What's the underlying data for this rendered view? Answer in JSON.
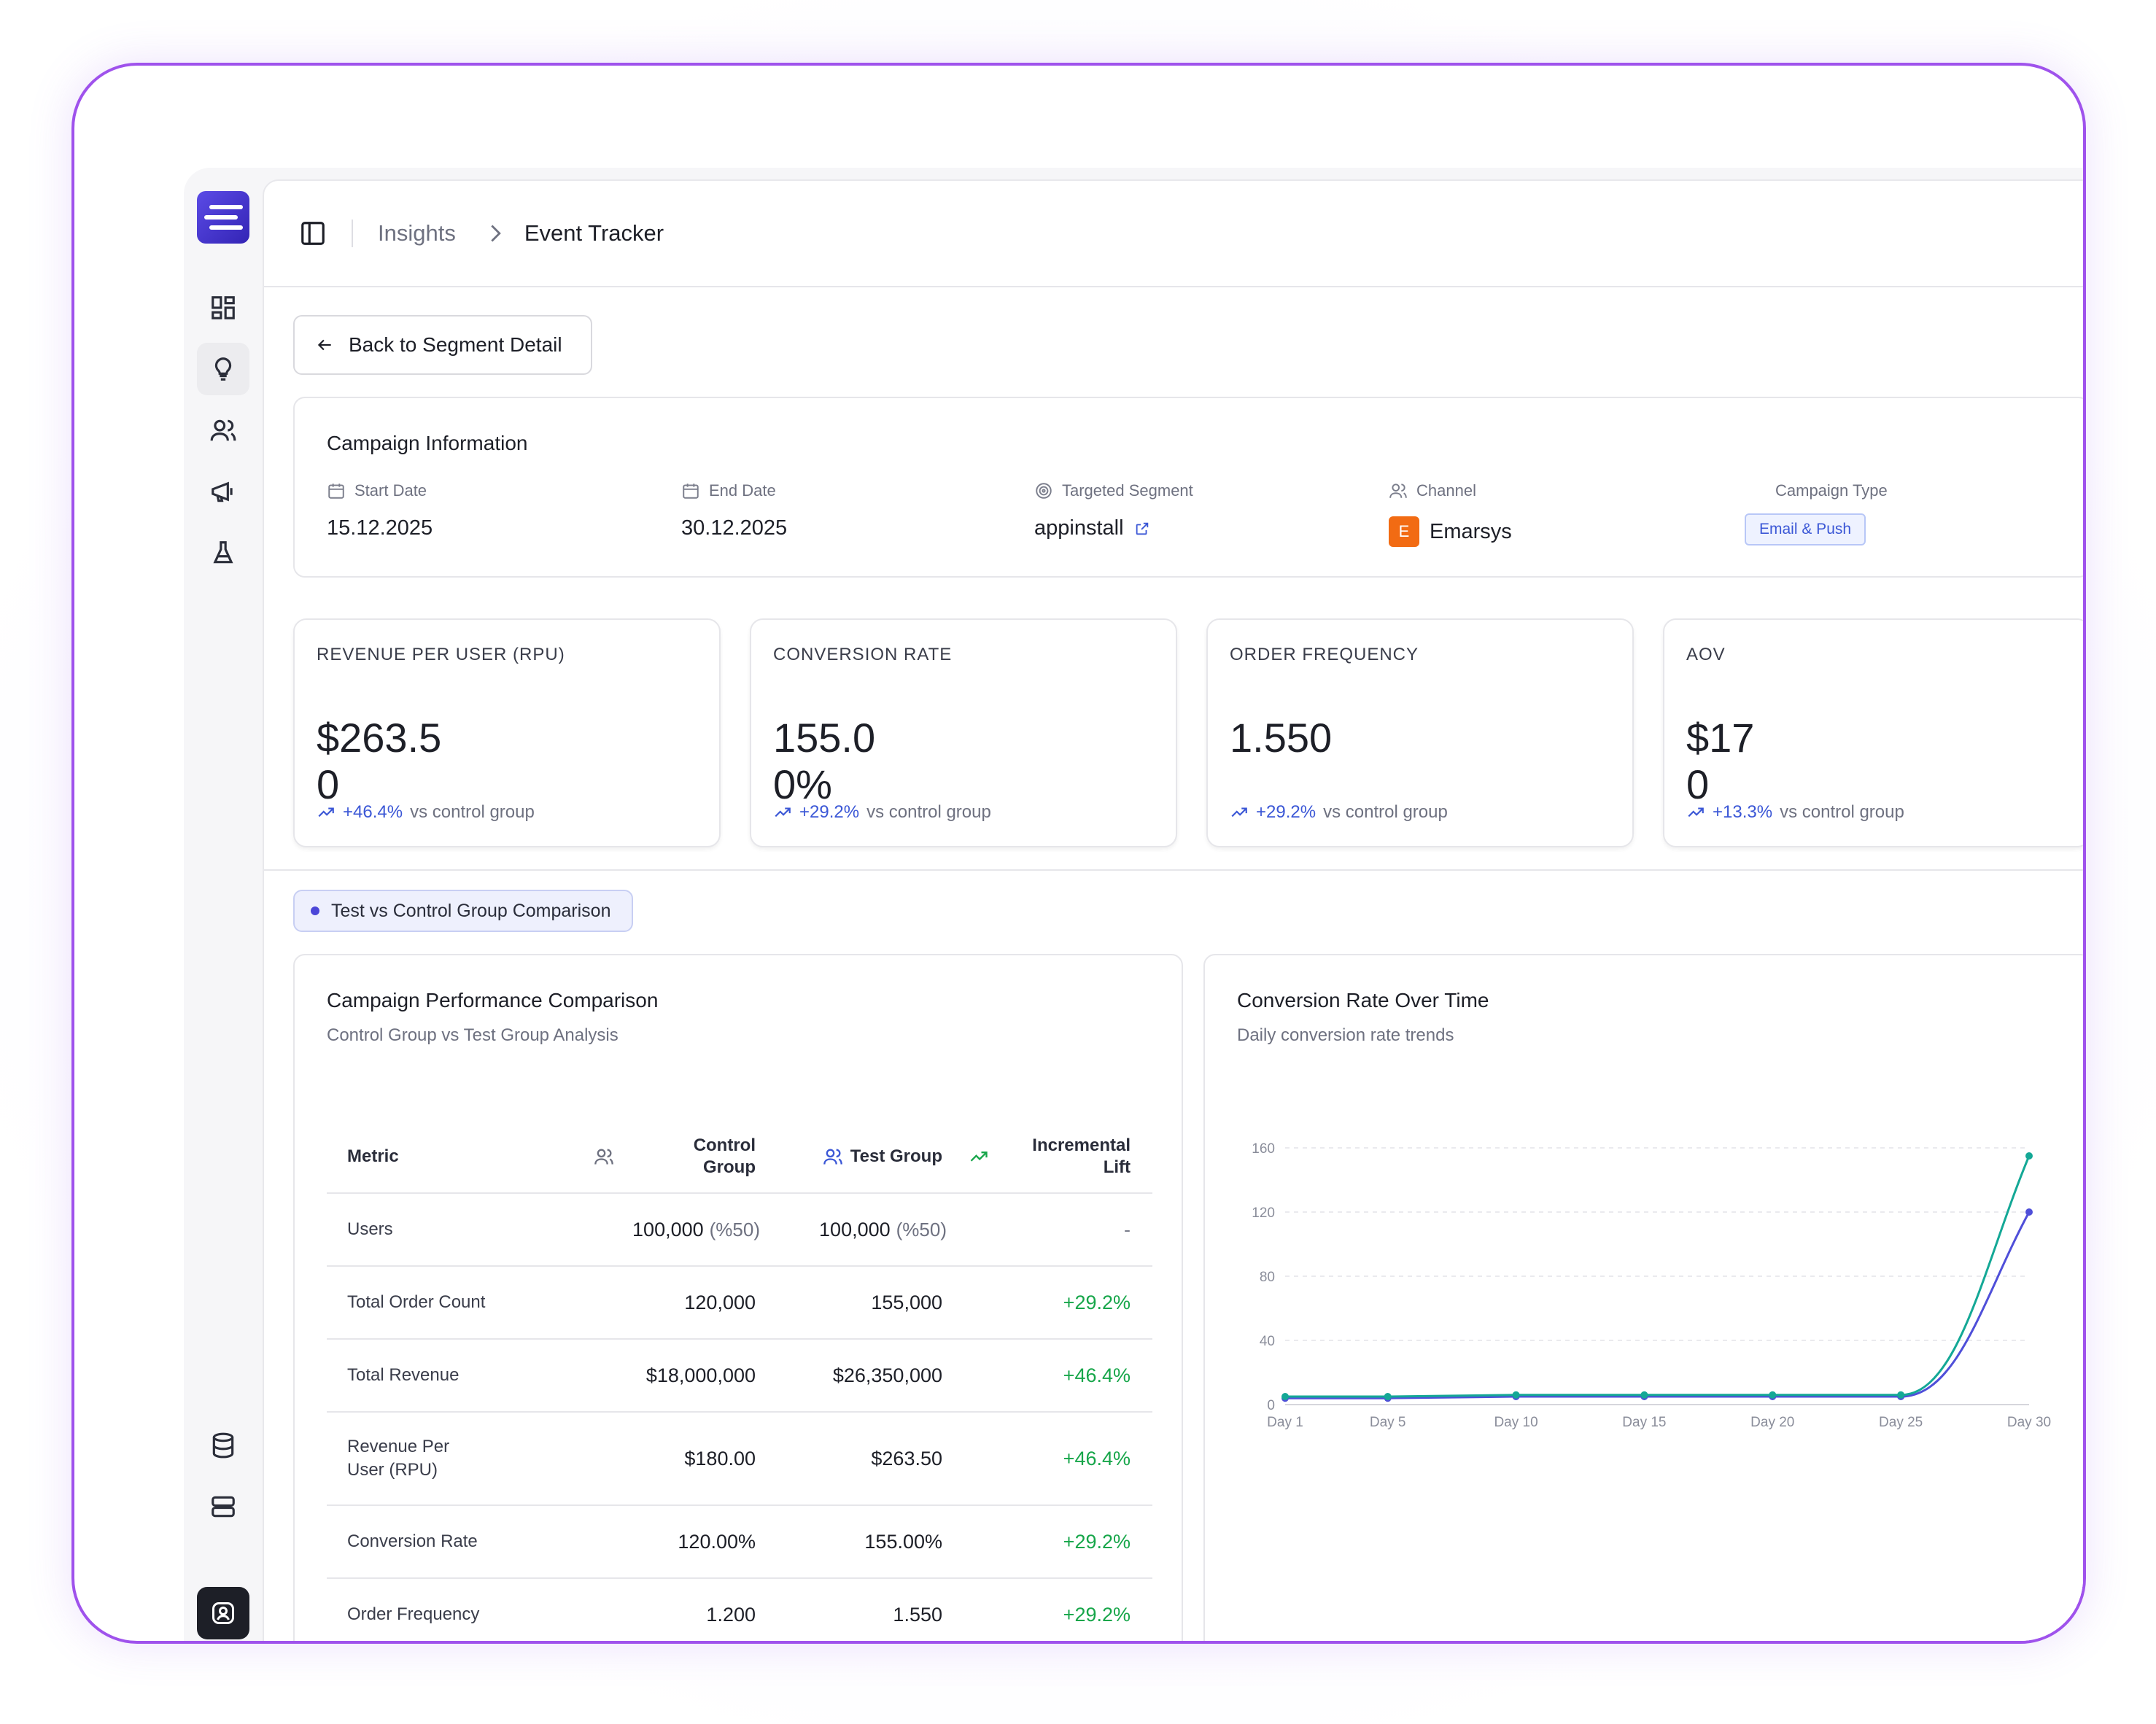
{
  "breadcrumb": {
    "parent": "Insights",
    "current": "Event Tracker"
  },
  "back_button": "Back to Segment Detail",
  "campaign": {
    "title": "Campaign Information",
    "start_label": "Start Date",
    "start_value": "15.12.2025",
    "end_label": "End Date",
    "end_value": "30.12.2025",
    "segment_label": "Targeted Segment",
    "segment_value": "appinstall",
    "channel_label": "Channel",
    "channel_badge": "E",
    "channel_value": "Emarsys",
    "type_label": "Campaign Type",
    "type_value": "Email & Push"
  },
  "kpis": [
    {
      "label": "REVENUE PER USER (RPU)",
      "value": "$263.50",
      "lift": "+46.4%",
      "suffix": "vs control group"
    },
    {
      "label": "CONVERSION RATE",
      "value": "155.00%",
      "lift": "+29.2%",
      "suffix": "vs control group"
    },
    {
      "label": "ORDER FREQUENCY",
      "value": "1.550",
      "lift": "+29.2%",
      "suffix": "vs control group"
    },
    {
      "label": "AOV",
      "value": "$170",
      "lift": "+13.3%",
      "suffix": "vs control group"
    }
  ],
  "comparison_tag": "Test vs Control Group Comparison",
  "performance": {
    "title": "Campaign Performance Comparison",
    "subtitle": "Control Group vs Test Group Analysis",
    "headers": {
      "metric": "Metric",
      "control": "Control Group",
      "test": "Test Group",
      "lift": "Incremental Lift"
    },
    "rows": [
      {
        "metric": "Users",
        "control": "100,000",
        "control_pct": "(%50)",
        "test": "100,000",
        "test_pct": "(%50)",
        "lift": "-"
      },
      {
        "metric": "Total Order Count",
        "control": "120,000",
        "test": "155,000",
        "lift": "+29.2%"
      },
      {
        "metric": "Total Revenue",
        "control": "$18,000,000",
        "test": "$26,350,000",
        "lift": "+46.4%"
      },
      {
        "metric": "Revenue Per User (RPU)",
        "control": "$180.00",
        "test": "$263.50",
        "lift": "+46.4%"
      },
      {
        "metric": "Conversion Rate",
        "control": "120.00%",
        "test": "155.00%",
        "lift": "+29.2%"
      },
      {
        "metric": "Order Frequency",
        "control": "1.200",
        "test": "1.550",
        "lift": "+29.2%"
      }
    ]
  },
  "conversion_chart": {
    "title": "Conversion Rate Over Time",
    "subtitle": "Daily conversion rate trends"
  },
  "colors": {
    "accent": "#3b57d6",
    "control": "#4f4fd9",
    "test": "#14a896",
    "positive": "#17a64a",
    "brand": "#4b3bd6"
  },
  "chart_data": {
    "type": "line",
    "x": [
      "Day 1",
      "Day 5",
      "Day 10",
      "Day 15",
      "Day 20",
      "Day 25",
      "Day 30"
    ],
    "series": [
      {
        "name": "Control Group",
        "values": [
          4,
          4,
          5,
          5,
          5,
          5,
          120
        ]
      },
      {
        "name": "Test Group",
        "values": [
          5,
          5,
          6,
          6,
          6,
          6,
          155
        ]
      }
    ],
    "yticks": [
      0,
      40,
      80,
      120,
      160
    ],
    "ylim": [
      0,
      160
    ],
    "grid": true,
    "legend": "bottom"
  }
}
